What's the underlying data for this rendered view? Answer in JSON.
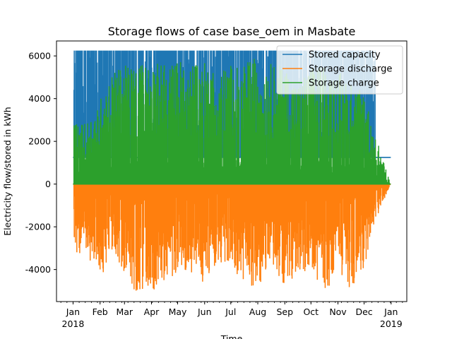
{
  "chart_data": {
    "type": "line",
    "title": "Storage flows of case base_oem in Masbate",
    "xlabel": "Time",
    "ylabel": "Electricity flow/stored in kWh",
    "x_range": [
      "2017-12-13",
      "2019-01-19"
    ],
    "ylim": [
      -5500,
      6700
    ],
    "y_ticks": [
      -4000,
      -2000,
      0,
      2000,
      4000,
      6000
    ],
    "x_ticks": [
      {
        "date": "2018-01-01",
        "label": "Jan",
        "sub": "2018"
      },
      {
        "date": "2018-02-01",
        "label": "Feb"
      },
      {
        "date": "2018-03-01",
        "label": "Mar"
      },
      {
        "date": "2018-04-01",
        "label": "Apr"
      },
      {
        "date": "2018-05-01",
        "label": "May"
      },
      {
        "date": "2018-06-01",
        "label": "Jun"
      },
      {
        "date": "2018-07-01",
        "label": "Jul"
      },
      {
        "date": "2018-08-01",
        "label": "Aug"
      },
      {
        "date": "2018-09-01",
        "label": "Sep"
      },
      {
        "date": "2018-10-01",
        "label": "Oct"
      },
      {
        "date": "2018-11-01",
        "label": "Nov"
      },
      {
        "date": "2018-12-01",
        "label": "Dec"
      },
      {
        "date": "2019-01-01",
        "label": "Jan",
        "sub": "2019"
      }
    ],
    "legend_position": "top-right",
    "grid": false,
    "series": [
      {
        "name": "Stored capacity",
        "color": "#1f77b4",
        "baseline": 1250,
        "peak": 6250,
        "start": "2018-01-01",
        "end": "2018-12-31",
        "points": [
          [
            "2018-01-01",
            1250
          ],
          [
            "2018-01-02",
            6250
          ],
          [
            "2018-01-03",
            1250
          ],
          [
            "2018-01-15",
            6250
          ],
          [
            "2018-01-16",
            1250
          ],
          [
            "2018-02-04",
            6250
          ],
          [
            "2018-02-07",
            6250
          ],
          [
            "2018-02-10",
            1250
          ],
          [
            "2018-02-12",
            6250
          ],
          [
            "2018-02-15",
            1250
          ],
          [
            "2018-02-20",
            6250
          ],
          [
            "2018-02-25",
            1250
          ],
          [
            "2018-03-01",
            6250
          ],
          [
            "2018-03-05",
            1250
          ],
          [
            "2018-03-10",
            6250
          ],
          [
            "2018-03-15",
            1250
          ],
          [
            "2018-03-22",
            6250
          ],
          [
            "2018-03-29",
            6250
          ],
          [
            "2018-04-02",
            1250
          ],
          [
            "2018-04-08",
            6250
          ],
          [
            "2018-04-20",
            6250
          ],
          [
            "2018-05-01",
            6250
          ],
          [
            "2018-05-15",
            6250
          ],
          [
            "2018-06-01",
            6250
          ],
          [
            "2018-06-15",
            6250
          ],
          [
            "2018-07-01",
            6250
          ],
          [
            "2018-07-15",
            1250
          ],
          [
            "2018-07-20",
            6250
          ],
          [
            "2018-08-01",
            6250
          ],
          [
            "2018-08-15",
            6250
          ],
          [
            "2018-09-01",
            6250
          ],
          [
            "2018-09-15",
            6250
          ],
          [
            "2018-10-01",
            6250
          ],
          [
            "2018-10-15",
            6250
          ],
          [
            "2018-11-01",
            6250
          ],
          [
            "2018-11-15",
            6250
          ],
          [
            "2018-12-01",
            6250
          ],
          [
            "2018-12-10",
            6250
          ],
          [
            "2018-12-14",
            1250
          ],
          [
            "2018-12-31",
            1250
          ]
        ]
      },
      {
        "name": "Storage discharge",
        "color": "#ff7f0e",
        "baseline": 0,
        "start": "2018-01-01",
        "end": "2018-12-31",
        "points": [
          [
            "2018-01-01",
            0
          ],
          [
            "2018-01-02",
            -2800
          ],
          [
            "2018-01-03",
            -3200
          ],
          [
            "2018-01-15",
            -3400
          ],
          [
            "2018-02-05",
            -4300
          ],
          [
            "2018-02-15",
            -3000
          ],
          [
            "2018-03-05",
            -4700
          ],
          [
            "2018-03-10",
            -5000
          ],
          [
            "2018-03-20",
            -5000
          ],
          [
            "2018-04-05",
            -5000
          ],
          [
            "2018-04-10",
            -4300
          ],
          [
            "2018-04-20",
            -5000
          ],
          [
            "2018-05-01",
            -4000
          ],
          [
            "2018-05-15",
            -4700
          ],
          [
            "2018-05-25",
            -5000
          ],
          [
            "2018-06-05",
            -4300
          ],
          [
            "2018-06-15",
            -3700
          ],
          [
            "2018-07-01",
            -4000
          ],
          [
            "2018-07-15",
            -4600
          ],
          [
            "2018-07-22",
            -4900
          ],
          [
            "2018-08-01",
            -5000
          ],
          [
            "2018-08-15",
            -3600
          ],
          [
            "2018-09-01",
            -4800
          ],
          [
            "2018-09-15",
            -4300
          ],
          [
            "2018-10-01",
            -4000
          ],
          [
            "2018-10-10",
            -4800
          ],
          [
            "2018-10-20",
            -5000
          ],
          [
            "2018-11-01",
            -4500
          ],
          [
            "2018-11-15",
            -4900
          ],
          [
            "2018-12-01",
            -4000
          ],
          [
            "2018-12-10",
            -2100
          ],
          [
            "2018-12-31",
            0
          ]
        ]
      },
      {
        "name": "Storage charge",
        "color": "#2ca02c",
        "baseline": 0,
        "start": "2018-01-01",
        "end": "2018-12-31",
        "points": [
          [
            "2018-01-01",
            0
          ],
          [
            "2018-01-02",
            3000
          ],
          [
            "2018-01-15",
            2800
          ],
          [
            "2018-02-05",
            4300
          ],
          [
            "2018-02-15",
            5300
          ],
          [
            "2018-03-05",
            5600
          ],
          [
            "2018-03-15",
            5700
          ],
          [
            "2018-04-05",
            5700
          ],
          [
            "2018-04-20",
            5600
          ],
          [
            "2018-05-01",
            5800
          ],
          [
            "2018-05-15",
            6100
          ],
          [
            "2018-06-01",
            5700
          ],
          [
            "2018-06-15",
            5300
          ],
          [
            "2018-07-01",
            5600
          ],
          [
            "2018-07-15",
            5700
          ],
          [
            "2018-08-01",
            6000
          ],
          [
            "2018-08-15",
            5700
          ],
          [
            "2018-09-01",
            5500
          ],
          [
            "2018-09-15",
            4600
          ],
          [
            "2018-10-01",
            5500
          ],
          [
            "2018-10-15",
            5700
          ],
          [
            "2018-11-01",
            5300
          ],
          [
            "2018-11-15",
            4800
          ],
          [
            "2018-12-01",
            4500
          ],
          [
            "2018-12-10",
            2900
          ],
          [
            "2018-12-31",
            0
          ]
        ]
      }
    ]
  }
}
